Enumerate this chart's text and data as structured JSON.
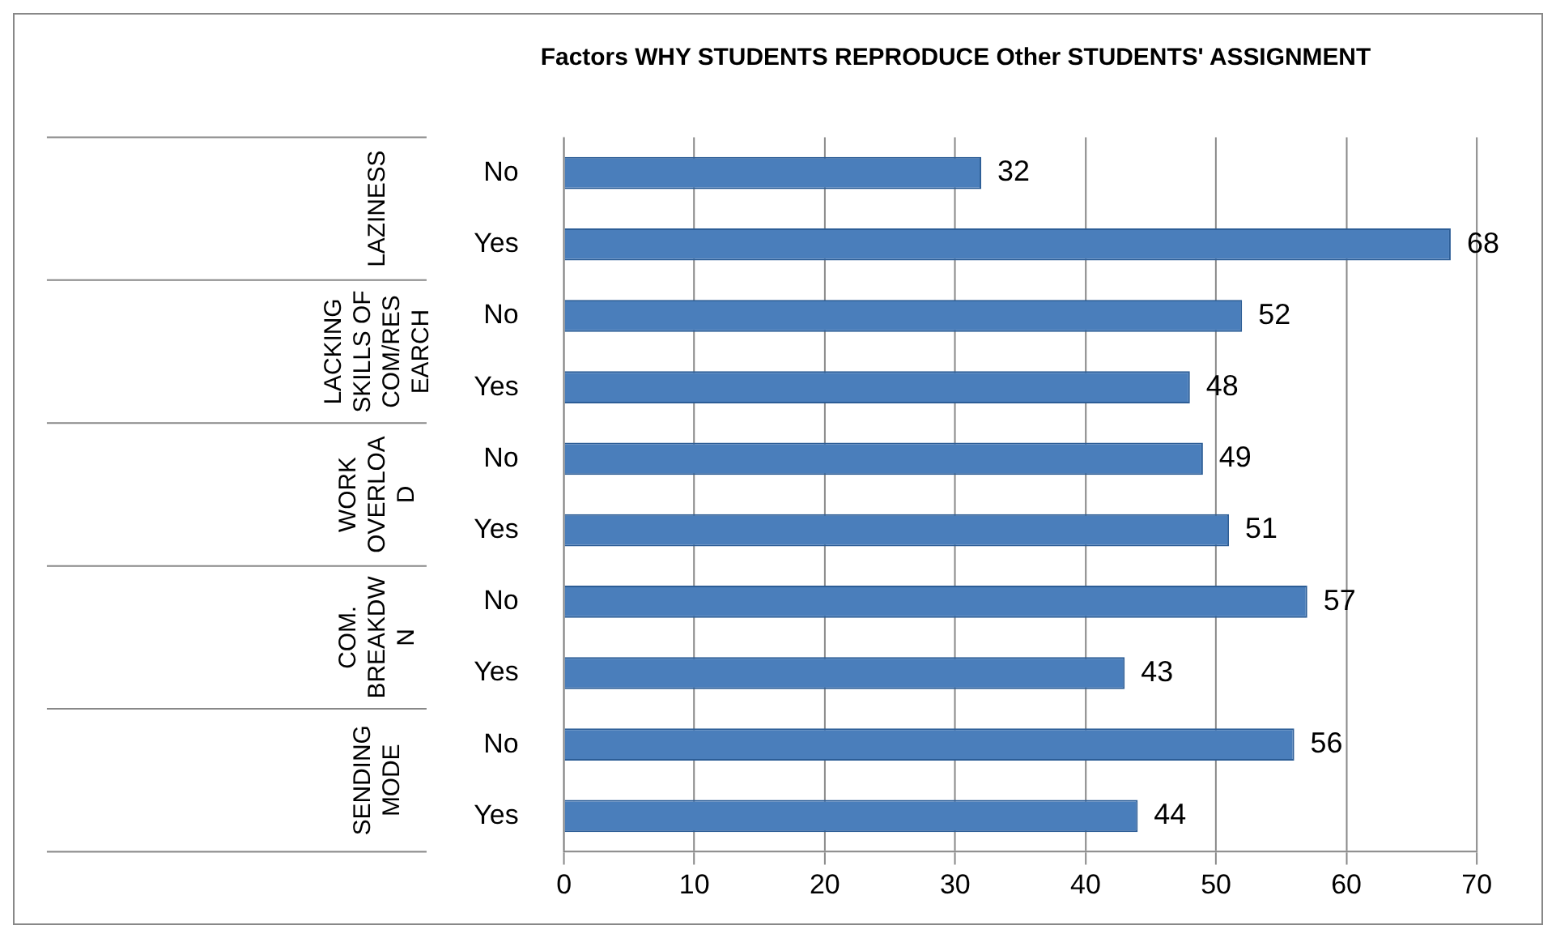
{
  "chart_data": {
    "type": "bar",
    "orientation": "horizontal",
    "title": "Factors WHY STUDENTS REPRODUCE Other STUDENTS' ASSIGNMENT",
    "categories": [
      "No",
      "Yes",
      "No",
      "Yes",
      "No",
      "Yes",
      "No",
      "Yes",
      "No",
      "Yes"
    ],
    "values": [
      32,
      68,
      52,
      48,
      49,
      51,
      57,
      43,
      56,
      44
    ],
    "color": "#4a7ebb",
    "xlim": [
      0,
      70
    ],
    "xticks": [
      0,
      10,
      20,
      30,
      40,
      50,
      60,
      70
    ],
    "grid": "x",
    "legend": false,
    "data_labels": true,
    "annotations": [
      "LAZINESS",
      "LACKING SKILLS OF COM/RESEARCH",
      "WORK OVERLOAD",
      "COM. BREAKDWN",
      "SENDING MODE"
    ]
  }
}
